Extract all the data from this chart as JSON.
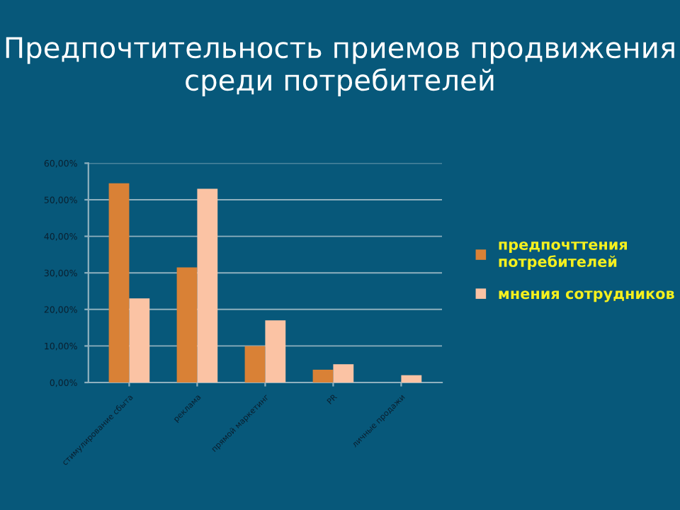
{
  "chart_data": {
    "type": "bar",
    "title": "Предпочтительность приемов продвижения среди потребителей",
    "categories": [
      "стимулирование сбыта",
      "реклама",
      "прямой маркетинг",
      "PR",
      "личные продажи"
    ],
    "series": [
      {
        "name": "предпочттения потребителей",
        "color": "#d98136",
        "values": [
          54.5,
          31.5,
          10,
          3.5,
          null
        ]
      },
      {
        "name": "мнения сотрудников",
        "color": "#fbc3a4",
        "values": [
          23,
          53,
          17,
          5,
          2
        ]
      }
    ],
    "ylim": [
      0,
      60
    ],
    "yticks": [
      {
        "value": 0,
        "label": "0,00%"
      },
      {
        "value": 10,
        "label": "10,00%"
      },
      {
        "value": 20,
        "label": "20,00%"
      },
      {
        "value": 30,
        "label": "30,00%"
      },
      {
        "value": 40,
        "label": "40,00%"
      },
      {
        "value": 50,
        "label": "50,00%"
      },
      {
        "value": 60,
        "label": "60,00%"
      }
    ],
    "grid": "y",
    "legend": "right"
  }
}
